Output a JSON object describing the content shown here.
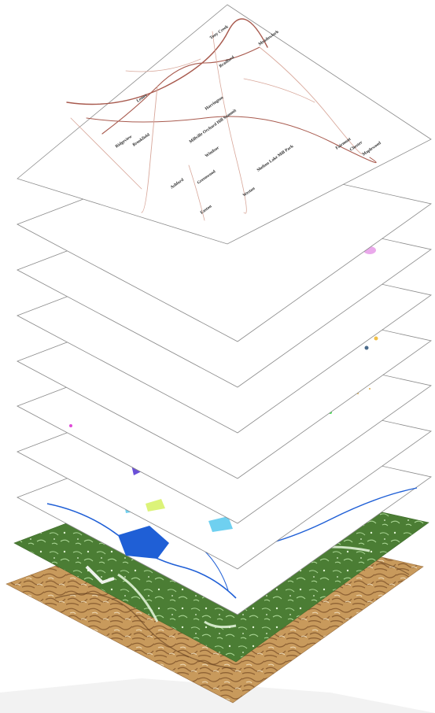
{
  "figure": {
    "layers": [
      {
        "id": "terrain",
        "name": "",
        "fill": "#c89a5c",
        "texture": "#7a4e26"
      },
      {
        "id": "vegetation",
        "name": "",
        "fill": "#4b7d34",
        "texture": "#b9e3a4"
      },
      {
        "id": "water",
        "name": "",
        "fill": "#ffffff",
        "texture": "#1f5fd6"
      },
      {
        "id": "landuse",
        "name": "",
        "fill": "#ffffff",
        "texture": "#6a4fd8"
      },
      {
        "id": "points",
        "name": "",
        "fill": "#ffffff",
        "texture": "#e0a832"
      },
      {
        "id": "roads",
        "name": "",
        "fill": "#ffffff",
        "texture": "#f2e23a"
      },
      {
        "id": "trails",
        "name": "",
        "fill": "#ffffff",
        "texture": "#d9a88a"
      },
      {
        "id": "urban",
        "name": "",
        "fill": "#ffffff",
        "texture": "#e79be8"
      },
      {
        "id": "blank",
        "name": "",
        "fill": "#ffffff",
        "texture": "#ffffff"
      },
      {
        "id": "reference",
        "name": "",
        "fill": "#ffffff",
        "texture": "#b5574a"
      }
    ],
    "place_labels": [
      "Tony Creek",
      "Meadowlark",
      "Bradford",
      "Lenox",
      "Harrington",
      "Ridgeview",
      "Brookfield",
      "Millville Orchard Hill Summit",
      "Windsor",
      "Ashford",
      "Greenwood",
      "Shelton Lake Mill Park",
      "Easton",
      "Weston",
      "Fairmont",
      "Chester",
      "Maplewood"
    ],
    "colors": {
      "outline": "#8a8a8a",
      "road_major": "#a85a4e",
      "road_minor": "#d8a79a",
      "label_text": "#2b2b2b",
      "shadow": "#e6e6e6"
    }
  }
}
